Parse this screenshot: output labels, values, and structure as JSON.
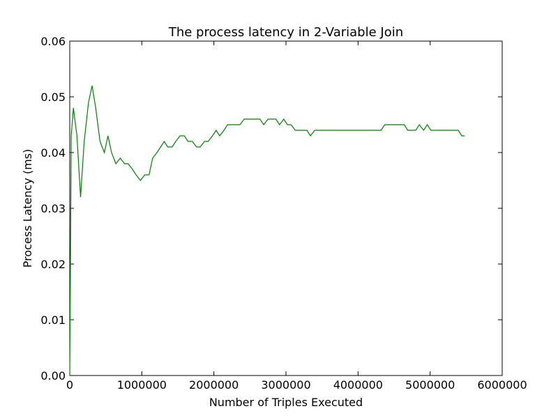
{
  "chart_data": {
    "type": "line",
    "title": "The process latency in 2-Variable Join",
    "xlabel": "Number of Triples Executed",
    "ylabel": "Process Latency (ms)",
    "xlim": [
      0,
      6000000
    ],
    "ylim": [
      0,
      0.06
    ],
    "xticks": [
      0,
      1000000,
      2000000,
      3000000,
      4000000,
      5000000,
      6000000
    ],
    "xtick_labels": [
      "0",
      "1000000",
      "2000000",
      "3000000",
      "4000000",
      "5000000",
      "6000000"
    ],
    "yticks": [
      0,
      0.01,
      0.02,
      0.03,
      0.04,
      0.05,
      0.06
    ],
    "ytick_labels": [
      "0.00",
      "0.01",
      "0.02",
      "0.03",
      "0.04",
      "0.05",
      "0.06"
    ],
    "grid": false,
    "colors": {
      "line": "#008000",
      "axes": "#000000",
      "background": "#ffffff"
    },
    "series": [
      {
        "x": [
          0,
          20000,
          50000,
          100000,
          150000,
          200000,
          260000,
          310000,
          360000,
          420000,
          480000,
          530000,
          580000,
          640000,
          700000,
          760000,
          810000,
          870000,
          920000,
          980000,
          1040000,
          1100000,
          1150000,
          1210000,
          1260000,
          1310000,
          1360000,
          1420000,
          1470000,
          1530000,
          1590000,
          1640000,
          1700000,
          1760000,
          1810000,
          1870000,
          1920000,
          1980000,
          2030000,
          2080000,
          2140000,
          2190000,
          2250000,
          2310000,
          2360000,
          2420000,
          2470000,
          2530000,
          2580000,
          2640000,
          2690000,
          2750000,
          2800000,
          2860000,
          2910000,
          2970000,
          3020000,
          3070000,
          3130000,
          3180000,
          3240000,
          3290000,
          3340000,
          3400000,
          3450000,
          3500000,
          3560000,
          3610000,
          3670000,
          3720000,
          3780000,
          3830000,
          3880000,
          3940000,
          3990000,
          4050000,
          4100000,
          4150000,
          4210000,
          4260000,
          4320000,
          4370000,
          4420000,
          4480000,
          4530000,
          4590000,
          4640000,
          4690000,
          4750000,
          4800000,
          4850000,
          4910000,
          4960000,
          5010000,
          5070000,
          5120000,
          5180000,
          5230000,
          5280000,
          5340000,
          5390000,
          5440000,
          5480000
        ],
        "values": [
          0.0,
          0.043,
          0.048,
          0.043,
          0.032,
          0.042,
          0.049,
          0.052,
          0.048,
          0.042,
          0.04,
          0.043,
          0.04,
          0.038,
          0.039,
          0.038,
          0.038,
          0.037,
          0.036,
          0.035,
          0.036,
          0.036,
          0.039,
          0.04,
          0.041,
          0.042,
          0.041,
          0.041,
          0.042,
          0.043,
          0.043,
          0.042,
          0.042,
          0.041,
          0.041,
          0.042,
          0.042,
          0.043,
          0.044,
          0.043,
          0.044,
          0.045,
          0.045,
          0.045,
          0.045,
          0.046,
          0.046,
          0.046,
          0.046,
          0.046,
          0.045,
          0.046,
          0.046,
          0.046,
          0.045,
          0.046,
          0.045,
          0.045,
          0.044,
          0.044,
          0.044,
          0.044,
          0.043,
          0.044,
          0.044,
          0.044,
          0.044,
          0.044,
          0.044,
          0.044,
          0.044,
          0.044,
          0.044,
          0.044,
          0.044,
          0.044,
          0.044,
          0.044,
          0.044,
          0.044,
          0.044,
          0.045,
          0.045,
          0.045,
          0.045,
          0.045,
          0.045,
          0.044,
          0.044,
          0.044,
          0.045,
          0.044,
          0.045,
          0.044,
          0.044,
          0.044,
          0.044,
          0.044,
          0.044,
          0.044,
          0.044,
          0.043,
          0.043
        ]
      }
    ]
  }
}
